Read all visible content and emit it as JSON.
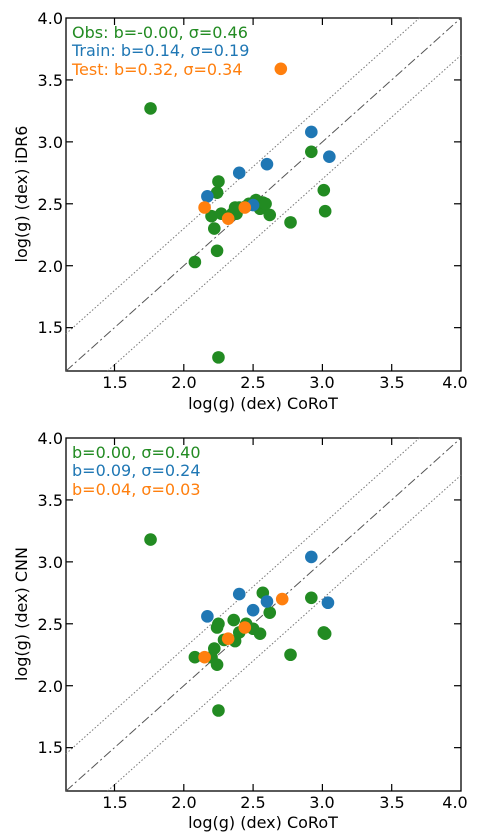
{
  "colors": {
    "obs": "#228b22",
    "train": "#1f77b4",
    "test": "#ff7f0e"
  },
  "chart_data": [
    {
      "type": "scatter",
      "xlabel": "log(g) (dex) CoRoT",
      "ylabel": "log(g) (dex) iDR6",
      "xlim": [
        1.15,
        4.0
      ],
      "ylim": [
        1.15,
        4.0
      ],
      "xticks": [
        "1.5",
        "2.0",
        "2.5",
        "3.0",
        "3.5",
        "4.0"
      ],
      "yticks": [
        "1.5",
        "2.0",
        "2.5",
        "3.0",
        "3.5",
        "4.0"
      ],
      "legend": [
        "Obs: b=-0.00, σ=0.46",
        "Train: b=0.14, σ=0.19",
        "Test: b=0.32, σ=0.34"
      ],
      "legend_position": "top-left",
      "reference_lines": {
        "identity": "dashdot",
        "offsets": [
          0.3,
          -0.3
        ],
        "offset_style": "dotted"
      },
      "series": [
        {
          "color_key": "obs",
          "x": [
            1.76,
            2.25,
            2.25,
            2.24,
            2.2,
            2.22,
            2.27,
            2.08,
            2.24,
            2.35,
            2.37,
            2.38,
            2.4,
            2.45,
            2.47,
            2.52,
            2.55,
            2.57,
            2.62,
            2.59,
            2.77,
            2.92,
            3.01,
            3.02
          ],
          "y": [
            3.27,
            1.26,
            2.68,
            2.59,
            2.4,
            2.3,
            2.42,
            2.03,
            2.12,
            2.42,
            2.47,
            2.42,
            2.47,
            2.48,
            2.5,
            2.53,
            2.46,
            2.51,
            2.41,
            2.5,
            2.35,
            2.92,
            2.61,
            2.44
          ]
        },
        {
          "color_key": "train",
          "x": [
            2.17,
            2.4,
            2.5,
            2.6,
            2.92,
            3.05
          ],
          "y": [
            2.56,
            2.75,
            2.49,
            2.82,
            3.08,
            2.88
          ]
        },
        {
          "color_key": "test",
          "x": [
            2.15,
            2.32,
            2.44,
            2.7
          ],
          "y": [
            2.47,
            2.38,
            2.47,
            3.59
          ]
        }
      ]
    },
    {
      "type": "scatter",
      "xlabel": "log(g) (dex) CoRoT",
      "ylabel": "log(g) (dex) CNN",
      "xlim": [
        1.15,
        4.0
      ],
      "ylim": [
        1.15,
        4.0
      ],
      "xticks": [
        "1.5",
        "2.0",
        "2.5",
        "3.0",
        "3.5",
        "4.0"
      ],
      "yticks": [
        "1.5",
        "2.0",
        "2.5",
        "3.0",
        "3.5",
        "4.0"
      ],
      "legend": [
        "b=0.00, σ=0.40",
        "b=0.09, σ=0.24",
        "b=0.04, σ=0.03"
      ],
      "legend_position": "top-left",
      "reference_lines": {
        "identity": "dashdot",
        "offsets": [
          0.3,
          -0.3
        ],
        "offset_style": "dotted"
      },
      "series": [
        {
          "color_key": "obs",
          "x": [
            1.76,
            2.25,
            2.08,
            2.22,
            2.2,
            2.25,
            2.24,
            2.24,
            2.29,
            2.36,
            2.37,
            2.4,
            2.45,
            2.5,
            2.55,
            2.57,
            2.62,
            2.77,
            2.92,
            3.01,
            3.02
          ],
          "y": [
            3.18,
            1.8,
            2.23,
            2.3,
            2.23,
            2.5,
            2.47,
            2.17,
            2.37,
            2.53,
            2.36,
            2.43,
            2.5,
            2.46,
            2.42,
            2.75,
            2.59,
            2.25,
            2.71,
            2.43,
            2.42
          ]
        },
        {
          "color_key": "train",
          "x": [
            2.17,
            2.4,
            2.5,
            2.6,
            2.92,
            3.04
          ],
          "y": [
            2.56,
            2.74,
            2.61,
            2.68,
            3.04,
            2.67
          ]
        },
        {
          "color_key": "test",
          "x": [
            2.15,
            2.32,
            2.44,
            2.71
          ],
          "y": [
            2.23,
            2.38,
            2.47,
            2.7
          ]
        }
      ]
    }
  ]
}
